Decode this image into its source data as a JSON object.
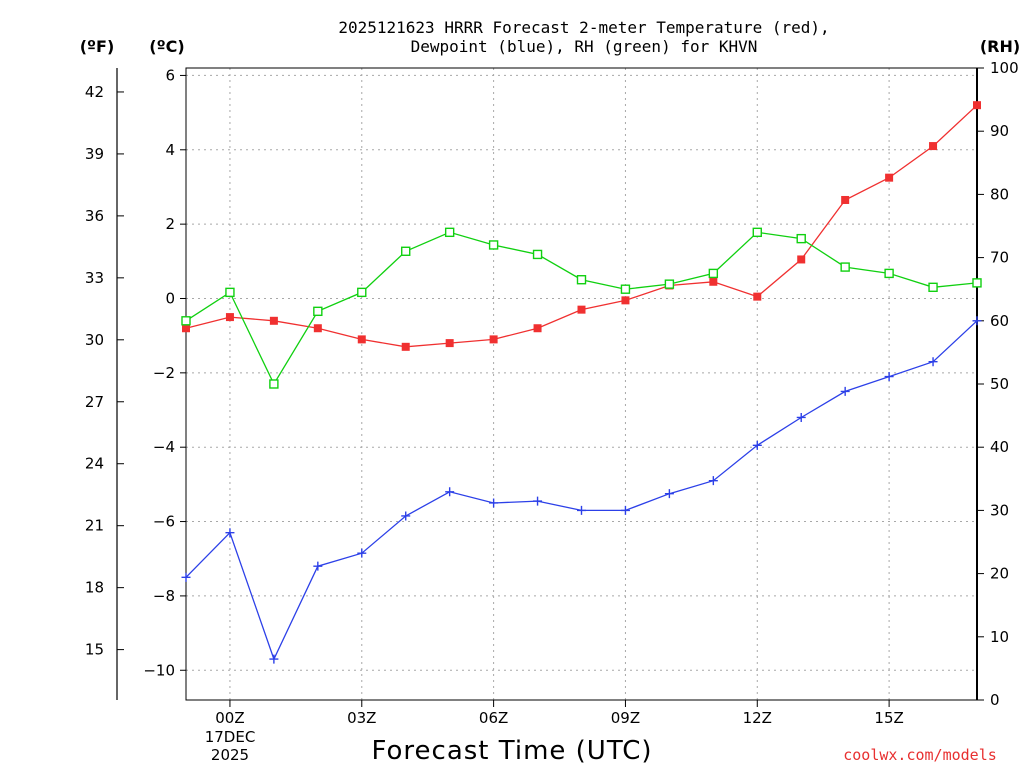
{
  "chart_data": {
    "type": "line",
    "title_lines": [
      "2025121623 HRRR Forecast 2-meter Temperature (red),",
      "Dewpoint (blue), RH (green) for KHVN"
    ],
    "xlabel": "Forecast Time (UTC)",
    "x_hours": [
      -1,
      0,
      1,
      2,
      3,
      4,
      5,
      6,
      7,
      8,
      9,
      10,
      11,
      12,
      13,
      14,
      15,
      16,
      17
    ],
    "xlim": [
      -1,
      17
    ],
    "x_ticks": [
      {
        "hour": 0,
        "label": "00Z"
      },
      {
        "hour": 3,
        "label": "03Z"
      },
      {
        "hour": 6,
        "label": "06Z"
      },
      {
        "hour": 9,
        "label": "09Z"
      },
      {
        "hour": 12,
        "label": "12Z"
      },
      {
        "hour": 15,
        "label": "15Z"
      }
    ],
    "date_label_lines": [
      "17DEC",
      "2025"
    ],
    "left_axis_c": {
      "unit_label": "(ºC)",
      "ylim": [
        -10.8,
        6.2
      ],
      "ticks": [
        6,
        4,
        2,
        0,
        -2,
        -4,
        -6,
        -8,
        -10
      ],
      "tick_labels": [
        "6",
        "4",
        "2",
        "0",
        "−2",
        "−4",
        "−6",
        "−8",
        "−10"
      ]
    },
    "left_axis_f": {
      "unit_label": "(ºF)",
      "ticks": [
        42,
        39,
        36,
        33,
        30,
        27,
        24,
        21,
        18,
        15
      ],
      "tick_labels": [
        "42",
        "39",
        "36",
        "33",
        "30",
        "27",
        "24",
        "21",
        "18",
        "15"
      ]
    },
    "right_axis_rh": {
      "unit_label": "(RH)",
      "ylim": [
        0,
        100
      ],
      "ticks": [
        0,
        10,
        20,
        30,
        40,
        50,
        60,
        70,
        80,
        90,
        100
      ],
      "tick_labels": [
        "0",
        "10",
        "20",
        "30",
        "40",
        "50",
        "60",
        "70",
        "80",
        "90",
        "100"
      ]
    },
    "series": [
      {
        "name": "2-meter Temperature",
        "axis": "C",
        "color": "#f03030",
        "marker": "filled-square",
        "values": [
          -0.8,
          -0.5,
          -0.6,
          -0.8,
          -1.1,
          -1.3,
          -1.2,
          -1.1,
          -0.8,
          -0.3,
          -0.05,
          0.35,
          0.45,
          0.05,
          1.05,
          2.65,
          3.25,
          4.1,
          5.2
        ]
      },
      {
        "name": "Dewpoint",
        "axis": "C",
        "color": "#2c40e8",
        "marker": "plus",
        "values": [
          -7.5,
          -6.3,
          -9.7,
          -7.2,
          -6.85,
          -5.85,
          -5.2,
          -5.5,
          -5.45,
          -5.7,
          -5.7,
          -5.25,
          -4.9,
          -3.95,
          -3.2,
          -2.5,
          -2.1,
          -1.7,
          -0.6
        ]
      },
      {
        "name": "Relative Humidity",
        "axis": "RH",
        "color": "#10d010",
        "marker": "open-square",
        "values": [
          60,
          64.5,
          50,
          61.5,
          64.5,
          71,
          74,
          72,
          70.5,
          66.5,
          65,
          65.8,
          67.5,
          74,
          73,
          68.5,
          67.5,
          65.3,
          66
        ]
      }
    ]
  },
  "credit": "coolwx.com/models",
  "credit_color": "#e83030"
}
